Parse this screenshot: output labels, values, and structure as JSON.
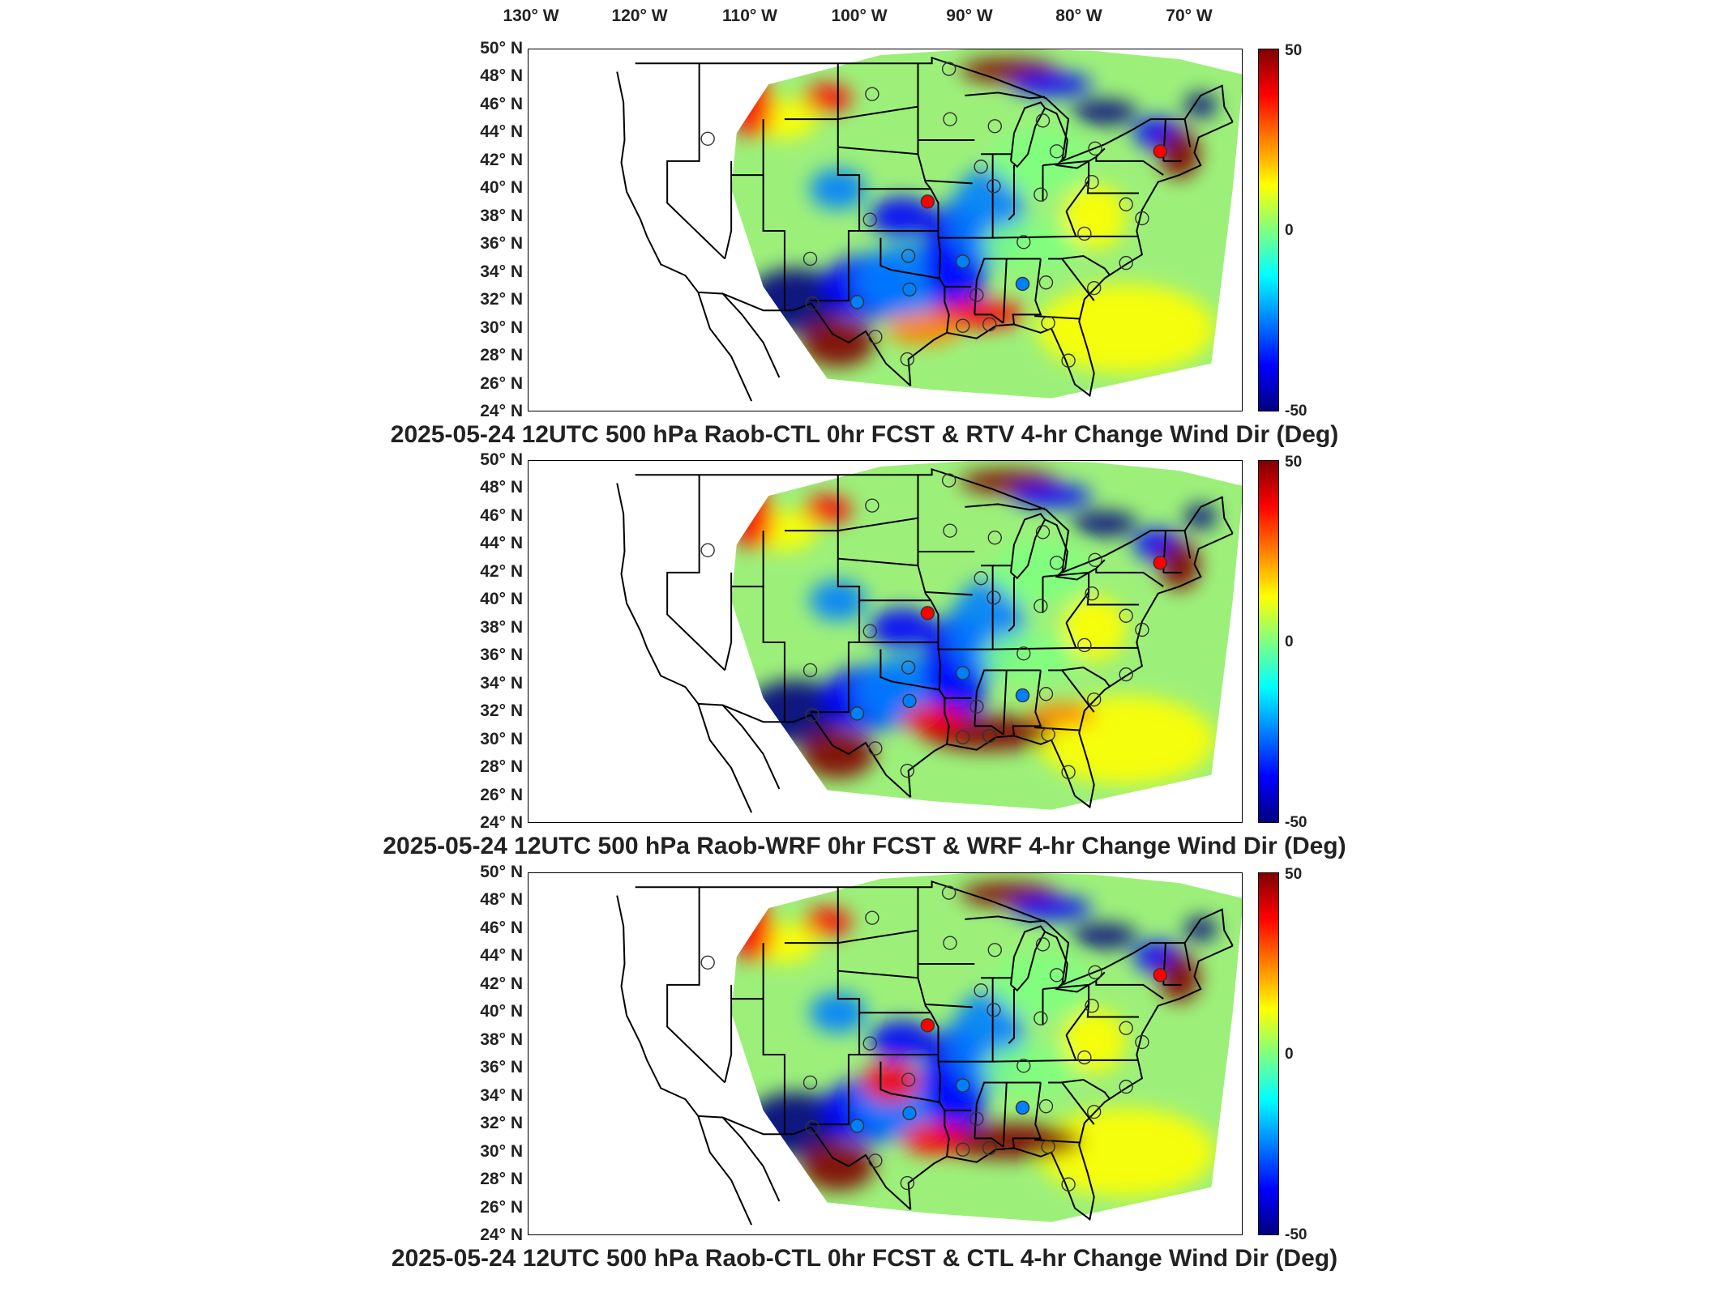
{
  "longitude_labels": [
    "130° W",
    "120° W",
    "110° W",
    "100° W",
    "90° W",
    "80° W",
    "70° W"
  ],
  "latitude_labels": [
    "50° N",
    "48° N",
    "46° N",
    "44° N",
    "42° N",
    "40° N",
    "38° N",
    "36° N",
    "34° N",
    "32° N",
    "30° N",
    "28° N",
    "26° N",
    "24° N"
  ],
  "colorbar": {
    "max_label": "50",
    "mid_label": "0",
    "min_label": "-50",
    "colors": [
      "#800000",
      "#ff0000",
      "#ff8000",
      "#ffff00",
      "#80ff80",
      "#00ffff",
      "#0080ff",
      "#0000ff",
      "#000080"
    ]
  },
  "panels": [
    {
      "title": "2025-05-24 12UTC 500 hPa Raob-CTL 0hr FCST & RTV 4-hr Change Wind Dir (Deg)"
    },
    {
      "title": "2025-05-24 12UTC 500 hPa Raob-WRF 0hr FCST & WRF 4-hr Change Wind Dir (Deg)"
    },
    {
      "title": "2025-05-24 12UTC 500 hPa Raob-CTL 0hr FCST & CTL 4-hr Change Wind Dir (Deg)"
    }
  ],
  "stations": [
    {
      "name": "s1",
      "lon": -100.8,
      "lat": 46.8,
      "value": 0
    },
    {
      "name": "s2",
      "lon": -93.6,
      "lat": 48.6,
      "value": 0
    },
    {
      "name": "s3",
      "lon": -93.5,
      "lat": 45.0,
      "value": 0
    },
    {
      "name": "s4",
      "lon": -89.3,
      "lat": 44.5,
      "value": 0
    },
    {
      "name": "s5",
      "lon": -84.8,
      "lat": 44.9,
      "value": 0
    },
    {
      "name": "s6",
      "lon": -83.5,
      "lat": 42.7,
      "value": 0
    },
    {
      "name": "s7",
      "lon": -79.9,
      "lat": 42.9,
      "value": 0
    },
    {
      "name": "s8",
      "lon": -73.8,
      "lat": 42.7,
      "value": 35
    },
    {
      "name": "s9",
      "lon": -116.2,
      "lat": 43.6,
      "value": 0
    },
    {
      "name": "s10",
      "lon": -90.6,
      "lat": 41.6,
      "value": 0
    },
    {
      "name": "s11",
      "lon": -89.4,
      "lat": 40.2,
      "value": 0
    },
    {
      "name": "s12",
      "lon": -85.0,
      "lat": 39.6,
      "value": 0
    },
    {
      "name": "s13",
      "lon": -80.2,
      "lat": 40.5,
      "value": 0
    },
    {
      "name": "s14",
      "lon": -95.6,
      "lat": 39.1,
      "value": 40
    },
    {
      "name": "s15",
      "lon": -101.0,
      "lat": 37.8,
      "value": 0
    },
    {
      "name": "s16",
      "lon": -77.0,
      "lat": 38.9,
      "value": 0
    },
    {
      "name": "s17",
      "lon": -75.5,
      "lat": 37.9,
      "value": 0
    },
    {
      "name": "s18",
      "lon": -80.9,
      "lat": 36.8,
      "value": 0
    },
    {
      "name": "s19",
      "lon": -86.6,
      "lat": 36.2,
      "value": 0
    },
    {
      "name": "s20",
      "lon": -106.6,
      "lat": 35.0,
      "value": 0
    },
    {
      "name": "s21",
      "lon": -97.4,
      "lat": 35.2,
      "value": 0
    },
    {
      "name": "s22",
      "lon": -92.3,
      "lat": 34.8,
      "value": -20
    },
    {
      "name": "s23",
      "lon": -77.0,
      "lat": 34.7,
      "value": 0
    },
    {
      "name": "s24",
      "lon": -80.0,
      "lat": 32.9,
      "value": 0
    },
    {
      "name": "s25",
      "lon": -86.7,
      "lat": 33.2,
      "value": -20
    },
    {
      "name": "s26",
      "lon": -84.5,
      "lat": 33.3,
      "value": 0
    },
    {
      "name": "s27",
      "lon": -91.0,
      "lat": 32.4,
      "value": 0
    },
    {
      "name": "s28",
      "lon": -97.3,
      "lat": 32.8,
      "value": -20
    },
    {
      "name": "s29",
      "lon": -102.2,
      "lat": 31.9,
      "value": -20
    },
    {
      "name": "s30",
      "lon": -106.4,
      "lat": 31.8,
      "value": 0
    },
    {
      "name": "s31",
      "lon": -92.3,
      "lat": 30.2,
      "value": 0
    },
    {
      "name": "s32",
      "lon": -84.3,
      "lat": 30.4,
      "value": 0
    },
    {
      "name": "s33",
      "lon": -89.8,
      "lat": 30.3,
      "value": 0
    },
    {
      "name": "s34",
      "lon": -97.5,
      "lat": 27.8,
      "value": 0
    },
    {
      "name": "s35",
      "lon": -100.5,
      "lat": 29.4,
      "value": 0
    },
    {
      "name": "s36",
      "lon": -82.4,
      "lat": 27.7,
      "value": 0
    }
  ]
}
